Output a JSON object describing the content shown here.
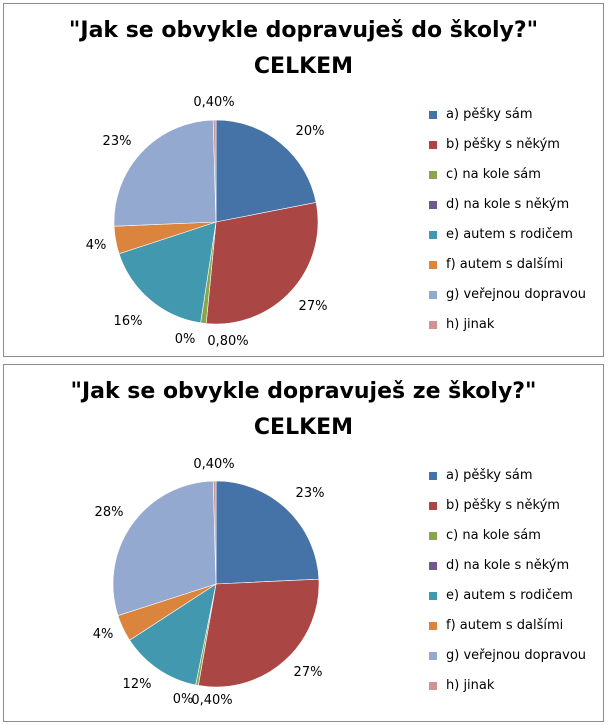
{
  "chart_data": [
    {
      "type": "pie",
      "title": "\"Jak se obvykle dopravuješ do školy?\"",
      "subtitle": "CELKEM",
      "categories": [
        "a) pěšky sám",
        "b) pěšky s někým",
        "c) na kole sám",
        "d) na kole s někým",
        "e) autem s rodičem",
        "f) autem s dalšími",
        "g) veřejnou dopravou",
        "h) jinak"
      ],
      "values": [
        20,
        27,
        0.8,
        0,
        16,
        4,
        23,
        0.4
      ],
      "data_labels": [
        "20%",
        "27%",
        "0,80%",
        "0%",
        "16%",
        "4%",
        "23%",
        "0,40%"
      ],
      "colors": [
        "#4572A7",
        "#AA4643",
        "#89A54E",
        "#71588F",
        "#4198AF",
        "#DB843D",
        "#93A9CF",
        "#D19392"
      ],
      "legend_position": "right"
    },
    {
      "type": "pie",
      "title": "\"Jak se obvykle dopravuješ ze školy?\"",
      "subtitle": "CELKEM",
      "categories": [
        "a) pěšky sám",
        "b) pěšky s někým",
        "c) na kole sám",
        "d) na kole s někým",
        "e) autem s rodičem",
        "f) autem s dalšími",
        "g) veřejnou dopravou",
        "h) jinak"
      ],
      "values": [
        23,
        27,
        0.4,
        0,
        12,
        4,
        28,
        0.4
      ],
      "data_labels": [
        "23%",
        "27%",
        "0,40%",
        "0%",
        "12%",
        "4%",
        "28%",
        "0,40%"
      ],
      "colors": [
        "#4572A7",
        "#AA4643",
        "#89A54E",
        "#71588F",
        "#4198AF",
        "#DB843D",
        "#93A9CF",
        "#D19392"
      ],
      "legend_position": "right"
    }
  ]
}
